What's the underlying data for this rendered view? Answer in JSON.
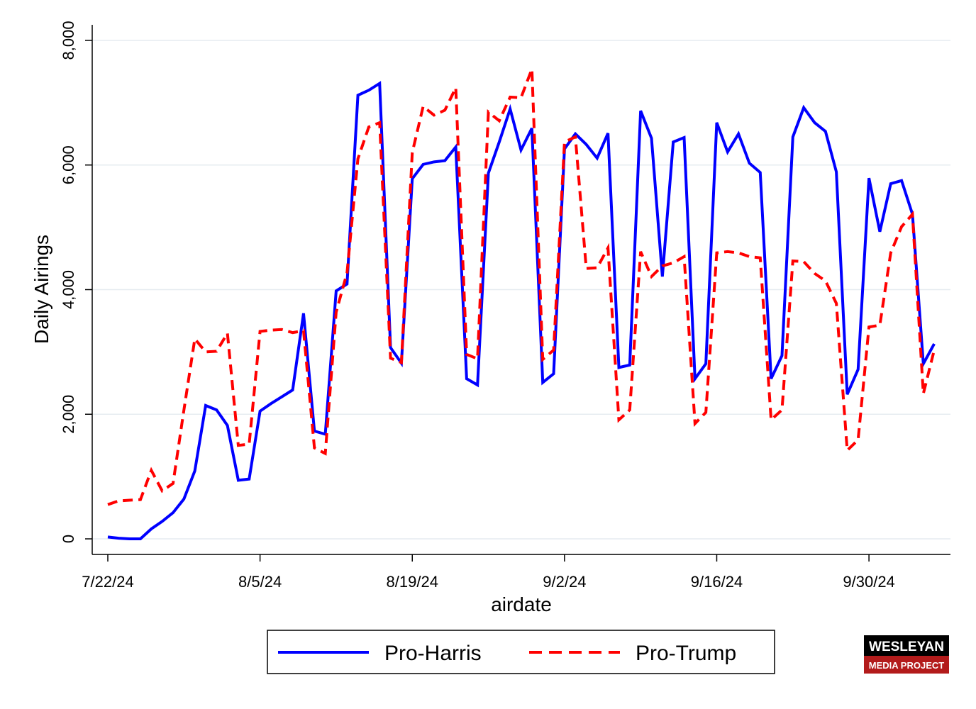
{
  "chart_data": {
    "type": "line",
    "y_label": "Daily Airings",
    "x_label": "airdate",
    "x": [
      "7/22/24",
      "7/23/24",
      "7/24/24",
      "7/25/24",
      "7/26/24",
      "7/27/24",
      "7/28/24",
      "7/29/24",
      "7/30/24",
      "7/31/24",
      "8/1/24",
      "8/2/24",
      "8/3/24",
      "8/4/24",
      "8/5/24",
      "8/6/24",
      "8/7/24",
      "8/8/24",
      "8/9/24",
      "8/10/24",
      "8/11/24",
      "8/12/24",
      "8/13/24",
      "8/14/24",
      "8/15/24",
      "8/16/24",
      "8/17/24",
      "8/18/24",
      "8/19/24",
      "8/20/24",
      "8/21/24",
      "8/22/24",
      "8/23/24",
      "8/24/24",
      "8/25/24",
      "8/26/24",
      "8/27/24",
      "8/28/24",
      "8/29/24",
      "8/30/24",
      "8/31/24",
      "9/1/24",
      "9/2/24",
      "9/3/24",
      "9/4/24",
      "9/5/24",
      "9/6/24",
      "9/7/24",
      "9/8/24",
      "9/9/24",
      "9/10/24",
      "9/11/24",
      "9/12/24",
      "9/13/24",
      "9/14/24",
      "9/15/24",
      "9/16/24",
      "9/17/24",
      "9/18/24",
      "9/19/24",
      "9/20/24",
      "9/21/24",
      "9/22/24",
      "9/23/24",
      "9/24/24",
      "9/25/24",
      "9/26/24",
      "9/27/24",
      "9/28/24",
      "9/29/24",
      "9/30/24",
      "10/1/24",
      "10/2/24",
      "10/3/24",
      "10/4/24",
      "10/5/24",
      "10/6/24"
    ],
    "xticks": [
      "7/22/24",
      "8/5/24",
      "8/19/24",
      "9/2/24",
      "9/16/24",
      "9/30/24"
    ],
    "ylim": [
      -250,
      8250
    ],
    "yticks": [
      0,
      {
        "value": 2000,
        "label": "2,000"
      },
      {
        "value": 4000,
        "label": "4,000"
      },
      {
        "value": 6000,
        "label": "6,000"
      },
      {
        "value": 8000,
        "label": "8,000"
      }
    ],
    "grid": true,
    "legend": "bottom",
    "series": [
      {
        "name": "Pro-Harris",
        "color": "#0000ff",
        "style": "solid",
        "values": [
          30,
          10,
          0,
          0,
          160,
          280,
          420,
          640,
          1090,
          2140,
          2070,
          1820,
          940,
          960,
          2050,
          2170,
          2280,
          2390,
          3620,
          1730,
          1680,
          3980,
          4090,
          7120,
          7200,
          7310,
          3070,
          2820,
          5780,
          6010,
          6050,
          6070,
          6290,
          2570,
          2470,
          5870,
          6370,
          6900,
          6240,
          6590,
          2510,
          2650,
          6260,
          6500,
          6330,
          6110,
          6510,
          2750,
          2790,
          6870,
          6430,
          4210,
          6370,
          6440,
          2570,
          2810,
          6680,
          6210,
          6500,
          6030,
          5880,
          2570,
          2940,
          6450,
          6920,
          6680,
          6540,
          5890,
          2320,
          2720,
          5790,
          4930,
          5700,
          5750,
          5210,
          2810,
          3130
        ]
      },
      {
        "name": "Pro-Trump",
        "color": "#ff0000",
        "style": "dashed",
        "values": [
          550,
          610,
          620,
          630,
          1100,
          770,
          890,
          2070,
          3210,
          3000,
          3010,
          3300,
          1500,
          1520,
          3330,
          3350,
          3360,
          3310,
          3340,
          1460,
          1370,
          3640,
          4270,
          6100,
          6610,
          6680,
          2900,
          2830,
          6200,
          6940,
          6800,
          6880,
          7240,
          2960,
          2890,
          6850,
          6710,
          7090,
          7080,
          7540,
          2880,
          3030,
          6370,
          6450,
          4340,
          4350,
          4670,
          1910,
          2070,
          4610,
          4210,
          4380,
          4430,
          4530,
          1850,
          2030,
          4590,
          4610,
          4590,
          4530,
          4510,
          1910,
          2070,
          4460,
          4450,
          4260,
          4140,
          3780,
          1420,
          1590,
          3400,
          3430,
          4590,
          5010,
          5210,
          2330,
          3030
        ]
      }
    ]
  },
  "logo": {
    "title": "WESLEYAN",
    "subtitle": "MEDIA PROJECT"
  }
}
